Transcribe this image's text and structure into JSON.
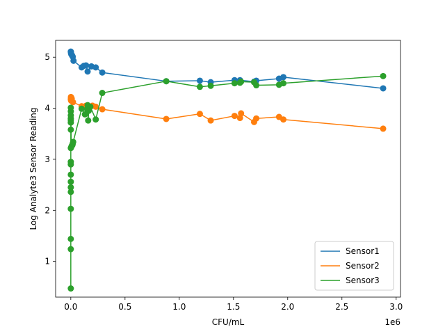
{
  "chart_data": {
    "type": "line",
    "title": "",
    "xlabel": "CFU/mL",
    "ylabel": "Log Analyte3 Sensor Reading",
    "x_offset_label": "1e6",
    "x_scale": 1000000,
    "xlim": [
      -0.14,
      3.04
    ],
    "ylim": [
      0.3,
      5.33
    ],
    "xticks": [
      0.0,
      0.5,
      1.0,
      1.5,
      2.0,
      2.5,
      3.0
    ],
    "xtick_labels": [
      "0.0",
      "0.5",
      "1.0",
      "1.5",
      "2.0",
      "2.5",
      "3.0"
    ],
    "yticks": [
      1,
      2,
      3,
      4,
      5
    ],
    "ytick_labels": [
      "1",
      "2",
      "3",
      "4",
      "5"
    ],
    "grid": false,
    "legend_position": "lower-right",
    "markers": true,
    "series": [
      {
        "name": "Sensor1",
        "color": "#1f77b4",
        "points": [
          [
            0.0,
            5.11
          ],
          [
            0.001,
            5.1
          ],
          [
            0.002,
            5.08
          ],
          [
            0.004,
            5.06
          ],
          [
            0.008,
            5.05
          ],
          [
            0.012,
            5.03
          ],
          [
            0.018,
            5.01
          ],
          [
            0.025,
            4.93
          ],
          [
            0.1,
            4.8
          ],
          [
            0.12,
            4.83
          ],
          [
            0.14,
            4.84
          ],
          [
            0.155,
            4.72
          ],
          [
            0.19,
            4.82
          ],
          [
            0.23,
            4.8
          ],
          [
            0.29,
            4.7
          ],
          [
            0.88,
            4.53
          ],
          [
            1.19,
            4.54
          ],
          [
            1.29,
            4.51
          ],
          [
            1.51,
            4.55
          ],
          [
            1.56,
            4.55
          ],
          [
            1.69,
            4.52
          ],
          [
            1.71,
            4.54
          ],
          [
            1.92,
            4.58
          ],
          [
            1.96,
            4.61
          ],
          [
            2.88,
            4.39
          ]
        ]
      },
      {
        "name": "Sensor2",
        "color": "#ff7f0e",
        "points": [
          [
            0.0,
            4.18
          ],
          [
            0.001,
            4.22
          ],
          [
            0.002,
            4.15
          ],
          [
            0.004,
            4.21
          ],
          [
            0.008,
            4.19
          ],
          [
            0.02,
            4.12
          ],
          [
            0.1,
            4.04
          ],
          [
            0.14,
            4.05
          ],
          [
            0.155,
            4.05
          ],
          [
            0.2,
            4.05
          ],
          [
            0.23,
            4.03
          ],
          [
            0.29,
            3.98
          ],
          [
            0.88,
            3.79
          ],
          [
            1.19,
            3.89
          ],
          [
            1.29,
            3.76
          ],
          [
            1.51,
            3.85
          ],
          [
            1.56,
            3.81
          ],
          [
            1.57,
            3.9
          ],
          [
            1.69,
            3.73
          ],
          [
            1.71,
            3.8
          ],
          [
            1.92,
            3.83
          ],
          [
            1.96,
            3.78
          ],
          [
            2.88,
            3.6
          ]
        ]
      },
      {
        "name": "Sensor3",
        "color": "#2ca02c",
        "points": [
          [
            0.0,
            3.94
          ],
          [
            0.0,
            3.77
          ],
          [
            0.0,
            3.22
          ],
          [
            0.0,
            2.03
          ],
          [
            0.0,
            1.24
          ],
          [
            0.0,
            0.47
          ],
          [
            0.0,
            1.44
          ],
          [
            0.0,
            2.36
          ],
          [
            0.0,
            2.45
          ],
          [
            0.0,
            2.56
          ],
          [
            0.0,
            2.7
          ],
          [
            0.0,
            2.9
          ],
          [
            0.0,
            2.95
          ],
          [
            0.0,
            3.58
          ],
          [
            0.0,
            3.72
          ],
          [
            0.0,
            3.8
          ],
          [
            0.0,
            3.86
          ],
          [
            0.0,
            4.01
          ],
          [
            0.004,
            3.24
          ],
          [
            0.01,
            3.27
          ],
          [
            0.015,
            3.28
          ],
          [
            0.018,
            3.31
          ],
          [
            0.022,
            3.34
          ],
          [
            0.1,
            3.99
          ],
          [
            0.13,
            3.88
          ],
          [
            0.15,
            3.98
          ],
          [
            0.155,
            4.06
          ],
          [
            0.16,
            3.76
          ],
          [
            0.165,
            3.95
          ],
          [
            0.18,
            4.03
          ],
          [
            0.23,
            3.78
          ],
          [
            0.29,
            4.3
          ],
          [
            0.88,
            4.53
          ],
          [
            1.19,
            4.42
          ],
          [
            1.29,
            4.44
          ],
          [
            1.51,
            4.49
          ],
          [
            1.56,
            4.5
          ],
          [
            1.57,
            4.52
          ],
          [
            1.69,
            4.51
          ],
          [
            1.71,
            4.45
          ],
          [
            1.92,
            4.46
          ],
          [
            1.96,
            4.49
          ],
          [
            2.88,
            4.63
          ]
        ]
      }
    ]
  }
}
